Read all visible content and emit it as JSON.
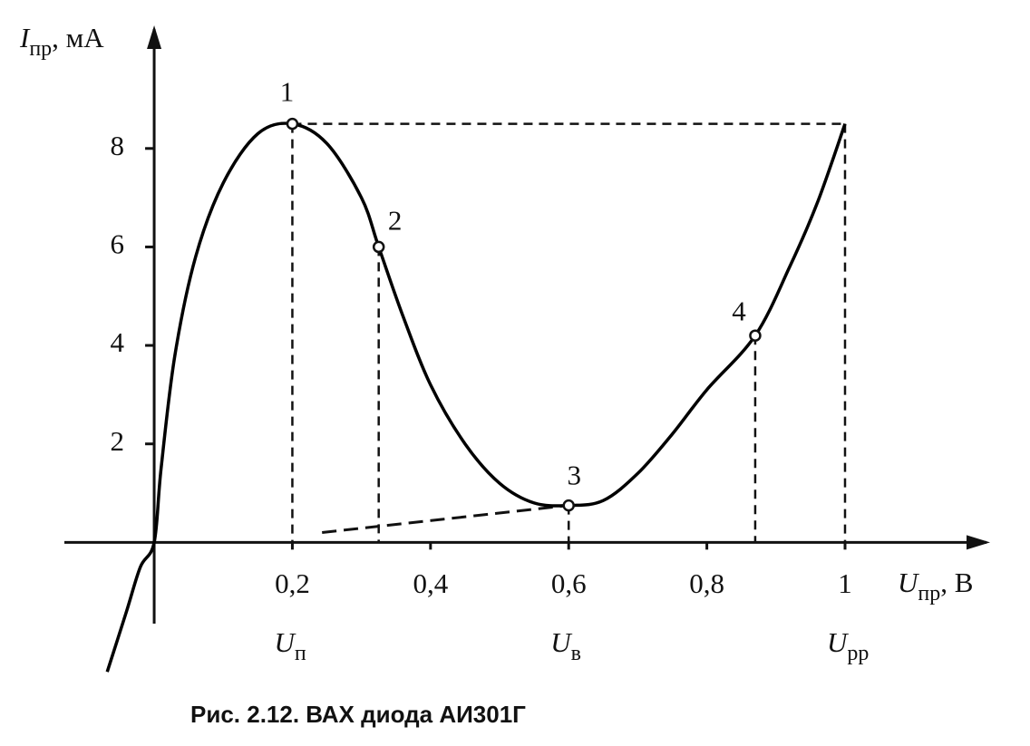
{
  "chart_data": {
    "type": "line",
    "caption": "Рис. 2.12. ВАХ диода АИ301Г",
    "y_label": {
      "symbol": "I",
      "subscript": "пр",
      "unit": ", мА"
    },
    "x_label": {
      "symbol": "U",
      "subscript": "пр",
      "unit": ", В"
    },
    "xlim": [
      -0.13,
      1.21
    ],
    "ylim": [
      -2.7,
      10.5
    ],
    "xticks": [
      {
        "value": 0.2,
        "label": "0,2"
      },
      {
        "value": 0.4,
        "label": "0,4"
      },
      {
        "value": 0.6,
        "label": "0,6"
      },
      {
        "value": 0.8,
        "label": "0,8"
      },
      1
    ],
    "yticks": [
      2,
      4,
      6,
      8
    ],
    "x": [
      -0.068,
      -0.04,
      -0.02,
      0,
      0.01,
      0.03,
      0.06,
      0.1,
      0.15,
      0.2,
      0.25,
      0.3,
      0.325,
      0.36,
      0.4,
      0.45,
      0.5,
      0.55,
      0.6,
      0.65,
      0.7,
      0.75,
      0.8,
      0.87,
      0.92,
      0.96,
      1.0
    ],
    "series": [
      {
        "color": "#000000",
        "values": [
          -2.63,
          -1.4,
          -0.5,
          0,
          1.5,
          3.8,
          5.8,
          7.3,
          8.3,
          8.5,
          8.1,
          7.0,
          6.0,
          4.6,
          3.2,
          2.0,
          1.2,
          0.8,
          0.75,
          0.85,
          1.4,
          2.2,
          3.1,
          4.2,
          5.6,
          6.9,
          8.5
        ]
      }
    ],
    "points": [
      {
        "label": "1",
        "x": 0.2,
        "y": 8.5
      },
      {
        "label": "2",
        "x": 0.325,
        "y": 6.0
      },
      {
        "label": "3",
        "x": 0.6,
        "y": 0.75
      },
      {
        "label": "4",
        "x": 0.87,
        "y": 4.2
      }
    ],
    "dashed_line": {
      "x": [
        0.243,
        0.6
      ],
      "y": [
        0.2,
        0.75
      ]
    },
    "voltage_labels": [
      {
        "symbol": "U",
        "subscript": "п",
        "x": 0.2
      },
      {
        "symbol": "U",
        "subscript": "в",
        "x": 0.6
      },
      {
        "symbol": "U",
        "subscript": "рр",
        "x": 1
      }
    ]
  }
}
